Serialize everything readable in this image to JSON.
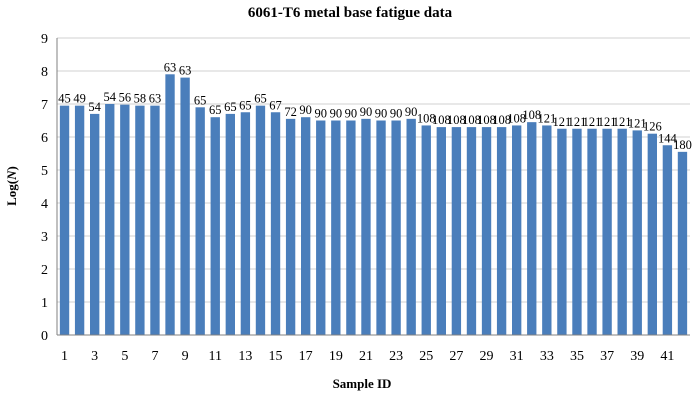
{
  "chart_data": {
    "type": "bar",
    "title": "6061-T6 metal base fatigue data",
    "xlabel": "Sample ID",
    "ylabel_prefix": "Log(",
    "ylabel_var": "N",
    "ylabel_suffix": ")",
    "ylim": [
      0,
      9
    ],
    "yticks": [
      0,
      1,
      2,
      3,
      4,
      5,
      6,
      7,
      8,
      9
    ],
    "grid": true,
    "bar_color": "#4a7ebb",
    "categories": [
      1,
      2,
      3,
      4,
      5,
      6,
      7,
      8,
      9,
      10,
      11,
      12,
      13,
      14,
      15,
      16,
      17,
      18,
      19,
      20,
      21,
      22,
      23,
      24,
      25,
      26,
      27,
      28,
      29,
      30,
      31,
      32,
      33,
      34,
      35,
      36,
      37,
      38,
      39,
      40,
      41,
      42
    ],
    "xtick_labels": [
      "1",
      "",
      "3",
      "",
      "5",
      "",
      "7",
      "",
      "9",
      "",
      "11",
      "",
      "13",
      "",
      "15",
      "",
      "17",
      "",
      "19",
      "",
      "21",
      "",
      "23",
      "",
      "25",
      "",
      "27",
      "",
      "29",
      "",
      "31",
      "",
      "33",
      "",
      "35",
      "",
      "37",
      "",
      "39",
      "",
      "41",
      ""
    ],
    "values": [
      6.95,
      6.95,
      6.7,
      7.0,
      6.98,
      6.95,
      6.95,
      7.9,
      7.8,
      6.9,
      6.6,
      6.7,
      6.75,
      6.95,
      6.75,
      6.55,
      6.6,
      6.5,
      6.5,
      6.5,
      6.55,
      6.5,
      6.5,
      6.55,
      6.35,
      6.3,
      6.3,
      6.3,
      6.3,
      6.3,
      6.35,
      6.45,
      6.35,
      6.25,
      6.25,
      6.25,
      6.25,
      6.25,
      6.2,
      6.1,
      5.75,
      5.55
    ],
    "data_labels": [
      "45",
      "49",
      "54",
      "54",
      "56",
      "58",
      "63",
      "63",
      "63",
      "65",
      "65",
      "65",
      "65",
      "65",
      "67",
      "72",
      "90",
      "90",
      "90",
      "90",
      "90",
      "90",
      "90",
      "90",
      "108",
      "108",
      "108",
      "108",
      "108",
      "108",
      "108",
      "108",
      "121",
      "121",
      "121",
      "121",
      "121",
      "121",
      "121",
      "126",
      "144",
      "180"
    ]
  }
}
